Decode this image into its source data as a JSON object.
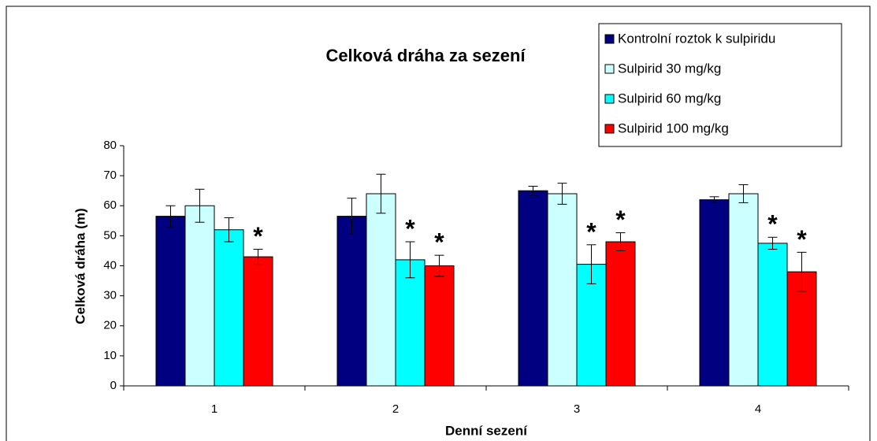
{
  "chart_data": {
    "type": "bar",
    "title": "Celková dráha za sezení",
    "x_label": "Denní sezení",
    "y_label": "Celková dráha (m)",
    "categories": [
      "1",
      "2",
      "3",
      "4"
    ],
    "ylim": [
      0,
      80
    ],
    "yticks": [
      0,
      10,
      20,
      30,
      40,
      50,
      60,
      70,
      80
    ],
    "series": [
      {
        "name": "Kontrolní roztok k sulpiridu",
        "color": "#000080",
        "values": [
          56.5,
          56.5,
          65,
          62
        ],
        "errors": [
          3.5,
          6,
          1.5,
          1
        ],
        "annotations": [
          null,
          null,
          null,
          null
        ]
      },
      {
        "name": "Sulpirid 30 mg/kg",
        "color": "#ccffff",
        "values": [
          60,
          64,
          64,
          64
        ],
        "errors": [
          5.5,
          6.5,
          3.5,
          3
        ],
        "annotations": [
          null,
          null,
          null,
          null
        ]
      },
      {
        "name": "Sulpirid 60 mg/kg",
        "color": "#00ffff",
        "values": [
          52,
          42,
          40.5,
          47.5
        ],
        "errors": [
          4,
          6,
          6.5,
          2
        ],
        "annotations": [
          null,
          "*",
          "*",
          "*"
        ]
      },
      {
        "name": "Sulpirid 100 mg/kg",
        "color": "#ff0000",
        "values": [
          43,
          40,
          48,
          38
        ],
        "errors": [
          2.5,
          3.5,
          3,
          6.5
        ],
        "annotations": [
          "*",
          "*",
          "*",
          "*"
        ]
      }
    ]
  }
}
